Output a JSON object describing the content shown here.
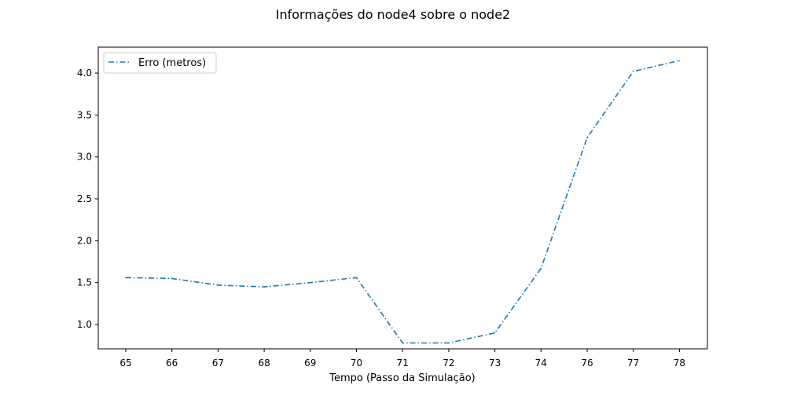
{
  "chart_data": {
    "type": "line",
    "title": "Informações do node4 sobre o node2",
    "xlabel": "Tempo (Passo da Simulação)",
    "ylabel": "",
    "categories": [
      "65",
      "66",
      "67",
      "68",
      "69",
      "70",
      "71",
      "72",
      "73",
      "74",
      "76",
      "77",
      "78"
    ],
    "x_ticks": [
      "65",
      "66",
      "67",
      "68",
      "69",
      "70",
      "71",
      "72",
      "73",
      "74",
      "76",
      "77",
      "78"
    ],
    "y_ticks": [
      "1.0",
      "1.5",
      "2.0",
      "2.5",
      "3.0",
      "3.5",
      "4.0"
    ],
    "ylim": [
      0.71,
      4.31
    ],
    "grid": false,
    "legend_position": "top-left",
    "series": [
      {
        "name": "Erro (metros)",
        "line_style": "dash-dot",
        "color": "#1f77b4",
        "values": [
          1.56,
          1.55,
          1.47,
          1.45,
          1.5,
          1.56,
          0.78,
          0.78,
          0.9,
          1.67,
          3.23,
          4.02,
          4.15
        ]
      }
    ]
  }
}
